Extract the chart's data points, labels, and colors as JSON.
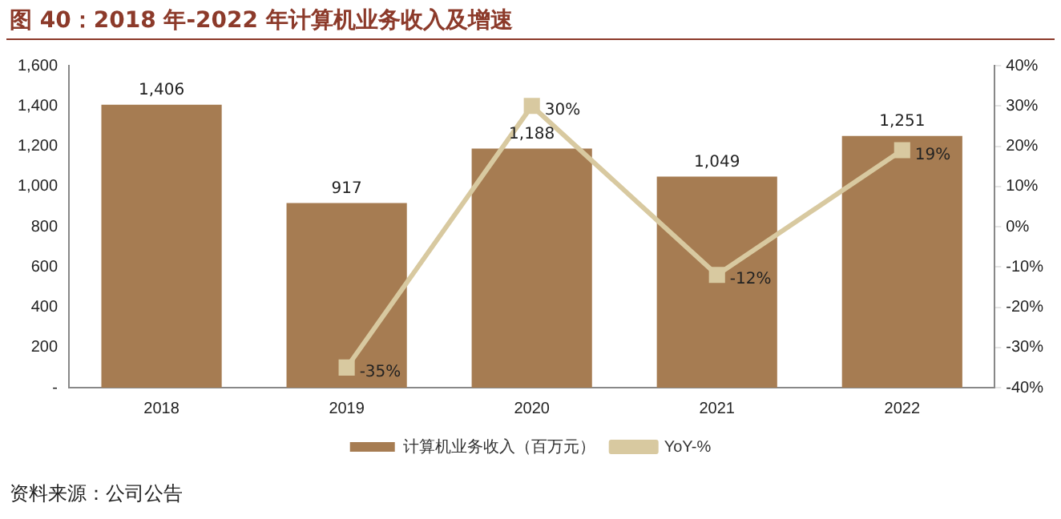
{
  "chart_data": {
    "type": "bar",
    "title": "图 40：2018 年-2022 年计算机业务收入及增速",
    "categories": [
      "2018",
      "2019",
      "2020",
      "2021",
      "2022"
    ],
    "series": [
      {
        "name": "计算机业务收入（百万元）",
        "color": "#a67c52",
        "values": [
          1406,
          917,
          1188,
          1049,
          1251
        ],
        "value_labels": [
          "1,406",
          "917",
          "1,188",
          "1,049",
          "1,251"
        ]
      },
      {
        "name": "YoY-%",
        "type": "line",
        "axis": "y2",
        "color": "#d8c9a0",
        "values": [
          null,
          -35,
          30,
          -12,
          19
        ],
        "value_labels": [
          null,
          "-35%",
          "30%",
          "-12%",
          "19%"
        ]
      }
    ],
    "ylim": [
      0,
      1600
    ],
    "yticks": [
      {
        "value": 0,
        "label": "-"
      },
      200,
      400,
      600,
      800,
      {
        "value": 1000,
        "label": "1,000"
      },
      {
        "value": 1200,
        "label": "1,200"
      },
      {
        "value": 1400,
        "label": "1,400"
      },
      {
        "value": 1600,
        "label": "1,600"
      }
    ],
    "y2lim": [
      -40,
      40
    ],
    "y2ticks": [
      {
        "value": -40,
        "label": "-40%"
      },
      {
        "value": -30,
        "label": "-30%"
      },
      {
        "value": -20,
        "label": "-20%"
      },
      {
        "value": -10,
        "label": "-10%"
      },
      {
        "value": 0,
        "label": "0%"
      },
      {
        "value": 10,
        "label": "10%"
      },
      {
        "value": 20,
        "label": "20%"
      },
      {
        "value": 30,
        "label": "30%"
      },
      {
        "value": 40,
        "label": "40%"
      }
    ],
    "grid": false,
    "legend": "bottom",
    "marker": "square",
    "annotations": [
      "资料来源：公司公告"
    ]
  }
}
